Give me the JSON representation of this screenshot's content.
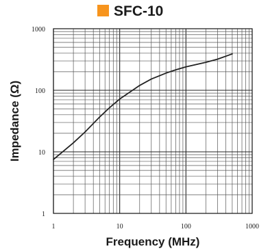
{
  "chart_data": {
    "type": "line",
    "title": "SFC-10",
    "xlabel": "Frequency (MHz)",
    "ylabel": "Impedance (Ω)",
    "x_scale": "log",
    "y_scale": "log",
    "xlim": [
      1,
      1000
    ],
    "ylim": [
      1,
      1000
    ],
    "x_ticks": [
      "1",
      "10",
      "100",
      "1000"
    ],
    "y_ticks": [
      "1",
      "10",
      "100",
      "1000"
    ],
    "grid": true,
    "legend_position": "top",
    "series": [
      {
        "name": "SFC-10",
        "color": "#f7941d",
        "line_color": "#222222",
        "x": [
          1,
          2,
          3,
          5,
          7,
          10,
          20,
          30,
          50,
          70,
          100,
          200,
          300,
          500
        ],
        "y": [
          7.5,
          14,
          21,
          37,
          52,
          72,
          120,
          152,
          190,
          215,
          240,
          285,
          320,
          390
        ]
      }
    ]
  }
}
